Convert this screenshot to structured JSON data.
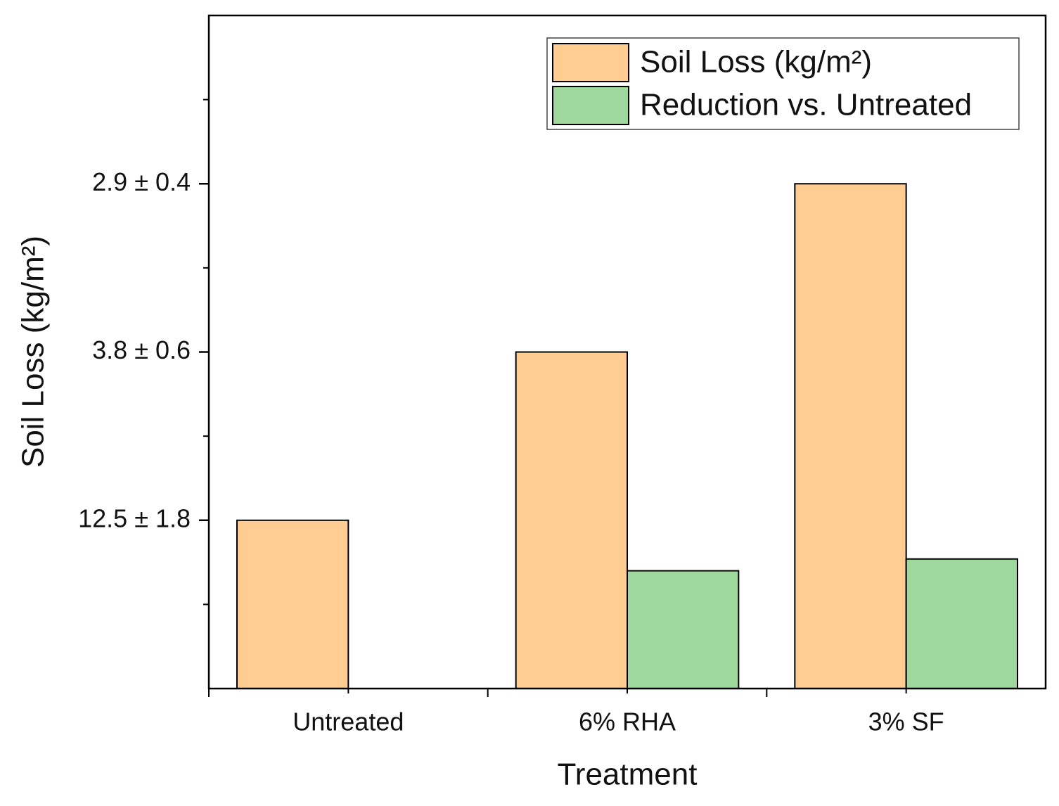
{
  "chart_data": {
    "type": "bar",
    "x_label": "Treatment",
    "y_label": "Soil Loss (kg/m²)",
    "categories": [
      "Untreated",
      "6% RHA",
      "3% SF"
    ],
    "series": [
      {
        "name": "Soil Loss (kg/m²)",
        "color": "#ffcc91",
        "values": [
          1,
          2,
          3
        ]
      },
      {
        "name": "Reduction vs. Untreated",
        "color": "#9fd89c",
        "values": [
          null,
          0.7,
          0.77
        ]
      }
    ],
    "ylim": [
      0,
      4
    ],
    "yticks": [
      {
        "value": 1,
        "label": "12.5 ± 1.8"
      },
      {
        "value": 2,
        "label": "3.8 ± 0.6"
      },
      {
        "value": 3,
        "label": "2.9 ± 0.4"
      }
    ],
    "minor_yticks": [
      0.5,
      1.5,
      2.5,
      3.5
    ],
    "legend": "top-right"
  }
}
